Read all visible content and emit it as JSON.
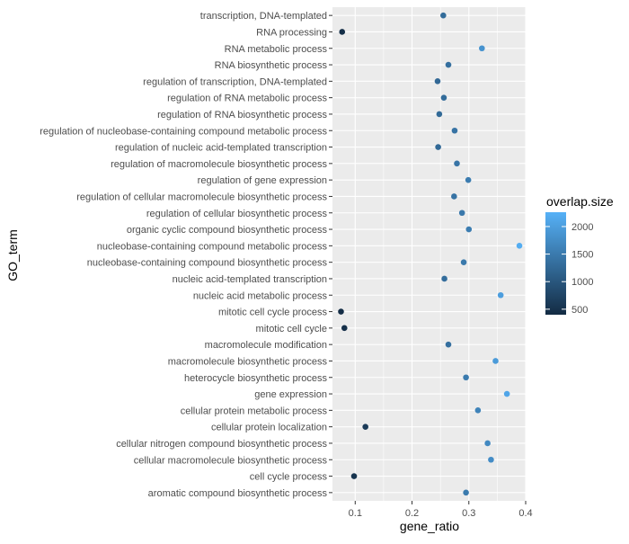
{
  "chart_data": {
    "type": "scatter",
    "title": "",
    "xlabel": "gene_ratio",
    "ylabel": "GO_term",
    "xlim": [
      0.06,
      0.4
    ],
    "x_ticks": [
      0.1,
      0.2,
      0.3,
      0.4
    ],
    "x_tick_labels": [
      "0.1",
      "0.2",
      "0.3",
      "0.4"
    ],
    "grid": true,
    "categories": [
      "transcription, DNA-templated",
      "RNA processing",
      "RNA metabolic process",
      "RNA biosynthetic process",
      "regulation of transcription, DNA-templated",
      "regulation of RNA metabolic process",
      "regulation of RNA biosynthetic process",
      "regulation of nucleobase-containing compound metabolic process",
      "regulation of nucleic acid-templated transcription",
      "regulation of macromolecule biosynthetic process",
      "regulation of gene expression",
      "regulation of cellular macromolecule biosynthetic process",
      "regulation of cellular biosynthetic process",
      "organic cyclic compound biosynthetic process",
      "nucleobase-containing compound metabolic process",
      "nucleobase-containing compound biosynthetic process",
      "nucleic acid-templated transcription",
      "nucleic acid metabolic process",
      "mitotic cell cycle process",
      "mitotic cell cycle",
      "macromolecule modification",
      "macromolecule biosynthetic process",
      "heterocycle biosynthetic process",
      "gene expression",
      "cellular protein metabolic process",
      "cellular protein localization",
      "cellular nitrogen compound biosynthetic process",
      "cellular macromolecule biosynthetic process",
      "cell cycle process",
      "aromatic compound biosynthetic process"
    ],
    "x": [
      0.255,
      0.077,
      0.323,
      0.264,
      0.245,
      0.256,
      0.248,
      0.275,
      0.246,
      0.279,
      0.299,
      0.274,
      0.288,
      0.3,
      0.389,
      0.291,
      0.257,
      0.356,
      0.075,
      0.081,
      0.264,
      0.347,
      0.295,
      0.367,
      0.316,
      0.118,
      0.333,
      0.339,
      0.098,
      0.295
    ],
    "overlap_size": [
      1300,
      450,
      1850,
      1350,
      1250,
      1300,
      1270,
      1400,
      1260,
      1420,
      1530,
      1400,
      1470,
      1540,
      2200,
      1490,
      1320,
      2000,
      430,
      460,
      1350,
      1950,
      1510,
      2100,
      1620,
      620,
      1700,
      1750,
      520,
      1510
    ],
    "legend": {
      "title": "overlap.size",
      "position": "right",
      "ticks": [
        500,
        1000,
        1500,
        2000
      ],
      "tick_labels": [
        "500",
        "1000",
        "1500",
        "2000"
      ],
      "range": [
        400,
        2260
      ],
      "color_low": "#132B43",
      "color_high": "#56B1F7"
    },
    "colors": {
      "panel_background": "#EBEBEB",
      "grid_line": "#FFFFFF",
      "axis_text": "#4D4D4D",
      "axis_title": "#000000"
    }
  }
}
